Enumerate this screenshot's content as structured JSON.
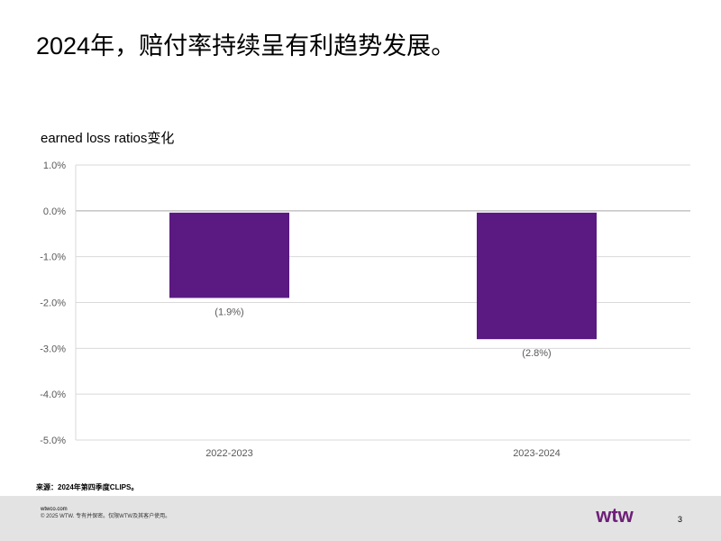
{
  "slide": {
    "title": "2024年，赔付率持续呈有利趋势发展。",
    "source_note": "来源：2024年第四季度CLIPS。"
  },
  "chart_data": {
    "type": "bar",
    "title": "earned loss ratios变化",
    "categories": [
      "2022-2023",
      "2023-2024"
    ],
    "values": [
      -1.9,
      -2.8
    ],
    "data_labels": [
      "(1.9%)",
      "(2.8%)"
    ],
    "y_ticks": [
      1.0,
      0.0,
      -1.0,
      -2.0,
      -3.0,
      -4.0,
      -5.0
    ],
    "y_tick_labels": [
      "1.0%",
      "0.0%",
      "-1.0%",
      "-2.0%",
      "-3.0%",
      "-4.0%",
      "-5.0%"
    ],
    "ylim": [
      -5.0,
      1.0
    ],
    "xlabel": "",
    "ylabel": "",
    "grid": true,
    "bar_color": "#5a1a82"
  },
  "footer": {
    "site": "wtwco.com",
    "copyright": "© 2025 WTW. 专有并保密。仅限WTW及其客户使用。",
    "logo_text": "wtw",
    "logo_color": "#6d2077",
    "page_number": "3"
  }
}
